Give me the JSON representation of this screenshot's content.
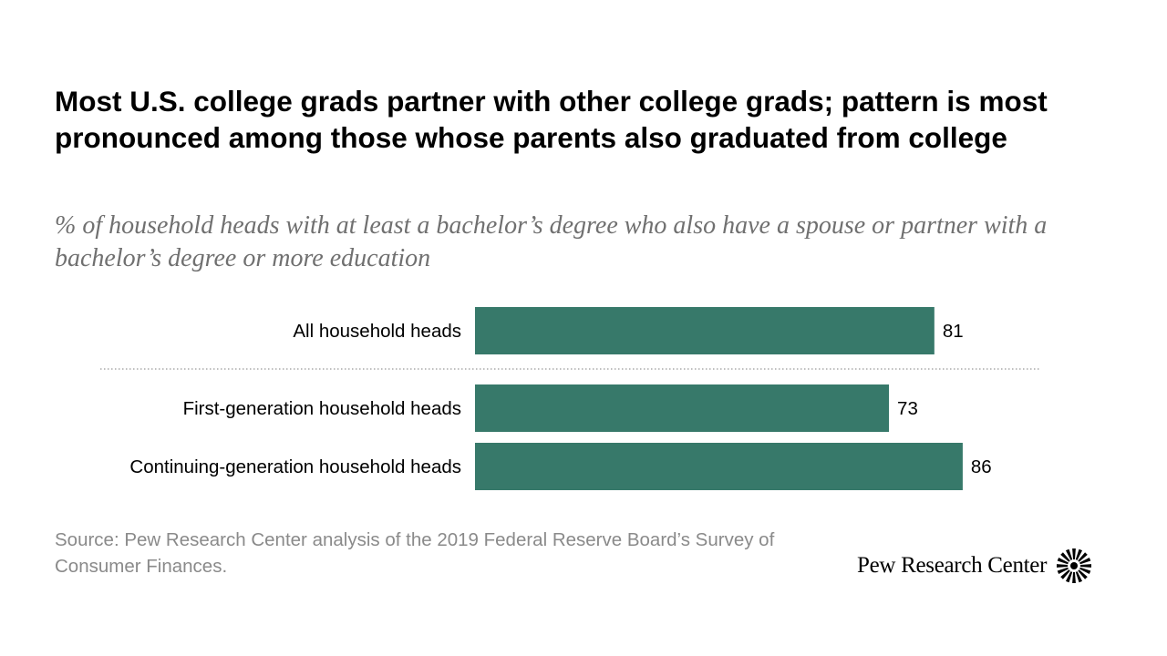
{
  "title": "Most U.S. college grads partner with other college grads; pattern is most pronounced among those whose parents also graduated from college",
  "subtitle": "% of household heads with at least a bachelor’s degree who also have a spouse or partner with a bachelor’s degree or more education",
  "source": "Source: Pew Research Center analysis of the 2019 Federal Reserve Board’s Survey of Consumer Finances.",
  "logo": {
    "text": "Pew Research Center",
    "icon": "pew-sunburst-icon"
  },
  "colors": {
    "bar": "#37796A",
    "title": "#000000",
    "subtitle": "#707070",
    "source": "#8A8A8A",
    "divider": "#999999"
  },
  "chart_data": {
    "type": "bar",
    "orientation": "horizontal",
    "categories": [
      "All household heads",
      "First-generation household heads",
      "Continuing-generation household heads"
    ],
    "values": [
      81,
      73,
      86
    ],
    "xlim": [
      0,
      100
    ],
    "grid": false,
    "legend": "none",
    "data_labels": true,
    "divider_after_first_category": true
  }
}
